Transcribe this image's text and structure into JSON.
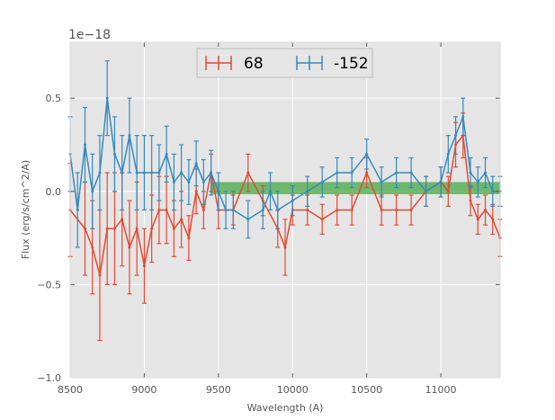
{
  "chart_data": {
    "type": "line",
    "title": "",
    "xlabel": "Wavelength (A)",
    "ylabel": "Flux (erg/s/cm^2/A)",
    "y_offset_label": "1e−18",
    "xlim": [
      8500,
      11400
    ],
    "ylim": [
      -1.0,
      0.8
    ],
    "x_ticks": [
      8500,
      9000,
      9500,
      10000,
      10500,
      11000
    ],
    "x_tick_labels": [
      "8500",
      "9000",
      "9500",
      "10000",
      "10500",
      "11000"
    ],
    "y_ticks": [
      -1.0,
      -0.5,
      0.0,
      0.5
    ],
    "y_tick_labels": [
      "−1.0",
      "−0.5",
      "0.0",
      "0.5"
    ],
    "grid": true,
    "legend_position": "top-center",
    "colors": {
      "background": "#e5e5e5",
      "grid": "#ffffff",
      "series_68": "#e24a33",
      "series_m152": "#348abd",
      "band": "#2ca02c"
    },
    "band": {
      "x_start": 9450,
      "x_end": 11400,
      "y_low": -0.015,
      "y_high": 0.05
    },
    "series": [
      {
        "name": "68",
        "color": "#e24a33",
        "x": [
          8500,
          8600,
          8650,
          8700,
          8750,
          8800,
          8850,
          8900,
          8950,
          9000,
          9050,
          9100,
          9150,
          9200,
          9250,
          9300,
          9350,
          9400,
          9450,
          9500,
          9600,
          9700,
          9800,
          9900,
          9950,
          10000,
          10100,
          10200,
          10300,
          10400,
          10500,
          10600,
          10700,
          10800,
          10900,
          11000,
          11050,
          11100,
          11150,
          11200,
          11250,
          11300,
          11350,
          11400
        ],
        "y": [
          -0.1,
          -0.2,
          -0.3,
          -0.45,
          -0.2,
          -0.2,
          -0.15,
          -0.3,
          -0.2,
          -0.4,
          -0.2,
          -0.1,
          -0.1,
          -0.2,
          -0.15,
          -0.25,
          0.0,
          -0.1,
          0.1,
          -0.1,
          -0.1,
          0.1,
          -0.05,
          -0.2,
          -0.3,
          -0.1,
          -0.1,
          -0.15,
          -0.1,
          -0.1,
          0.1,
          -0.1,
          -0.1,
          -0.1,
          0.0,
          0.05,
          0.0,
          0.25,
          0.3,
          -0.05,
          -0.15,
          -0.1,
          -0.15,
          -0.25
        ],
        "err": [
          0.25,
          0.25,
          0.25,
          0.35,
          0.3,
          0.3,
          0.25,
          0.25,
          0.25,
          0.2,
          0.18,
          0.18,
          0.18,
          0.15,
          0.15,
          0.12,
          0.12,
          0.1,
          0.1,
          0.1,
          0.08,
          0.1,
          0.08,
          0.1,
          0.15,
          0.08,
          0.08,
          0.08,
          0.08,
          0.08,
          0.08,
          0.08,
          0.08,
          0.08,
          0.08,
          0.08,
          0.08,
          0.12,
          0.12,
          0.08,
          0.08,
          0.08,
          0.08,
          0.1
        ]
      },
      {
        "name": "-152",
        "color": "#348abd",
        "x": [
          8500,
          8550,
          8600,
          8650,
          8700,
          8750,
          8800,
          8850,
          8900,
          8950,
          9000,
          9050,
          9100,
          9150,
          9200,
          9250,
          9300,
          9350,
          9400,
          9450,
          9500,
          9550,
          9600,
          9700,
          9800,
          9850,
          9900,
          10000,
          10100,
          10200,
          10300,
          10400,
          10500,
          10600,
          10700,
          10800,
          10900,
          11000,
          11050,
          11100,
          11150,
          11200,
          11250,
          11300,
          11350,
          11400
        ],
        "y": [
          0.2,
          -0.1,
          0.25,
          0.0,
          0.1,
          0.5,
          0.2,
          0.1,
          0.3,
          0.1,
          0.1,
          0.1,
          0.1,
          0.2,
          0.05,
          0.1,
          0.05,
          0.15,
          0.05,
          0.1,
          0.0,
          -0.1,
          -0.1,
          -0.15,
          -0.1,
          0.0,
          -0.1,
          -0.05,
          0.0,
          0.05,
          0.1,
          0.1,
          0.2,
          0.05,
          0.1,
          0.1,
          0.0,
          0.05,
          0.2,
          0.3,
          0.4,
          0.1,
          0.05,
          0.1,
          0.0,
          0.0
        ],
        "err": [
          0.2,
          0.2,
          0.2,
          0.2,
          0.2,
          0.2,
          0.2,
          0.2,
          0.2,
          0.2,
          0.2,
          0.2,
          0.15,
          0.15,
          0.15,
          0.15,
          0.12,
          0.12,
          0.12,
          0.12,
          0.1,
          0.1,
          0.1,
          0.1,
          0.1,
          0.1,
          0.1,
          0.08,
          0.08,
          0.08,
          0.08,
          0.08,
          0.08,
          0.08,
          0.08,
          0.08,
          0.08,
          0.08,
          0.1,
          0.1,
          0.1,
          0.08,
          0.08,
          0.08,
          0.08,
          0.08
        ]
      }
    ]
  }
}
